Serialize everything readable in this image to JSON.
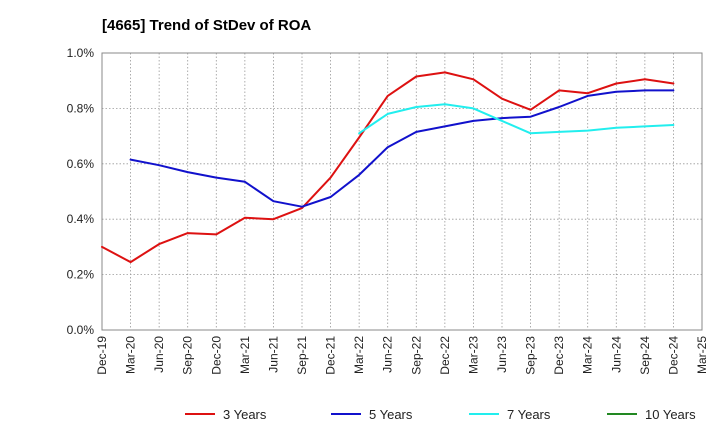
{
  "chart_data": {
    "type": "line",
    "title": "[4665]  Trend of StDev of ROA",
    "xlabel": "",
    "ylabel": "",
    "x_labels": [
      "Dec-19",
      "Mar-20",
      "Jun-20",
      "Sep-20",
      "Dec-20",
      "Mar-21",
      "Jun-21",
      "Sep-21",
      "Dec-21",
      "Mar-22",
      "Jun-22",
      "Sep-22",
      "Dec-22",
      "Mar-23",
      "Jun-23",
      "Sep-23",
      "Dec-23",
      "Mar-24",
      "Jun-24",
      "Sep-24",
      "Dec-24",
      "Mar-25"
    ],
    "y_ticks": [
      "0.0%",
      "0.2%",
      "0.4%",
      "0.6%",
      "0.8%",
      "1.0%"
    ],
    "ylim": [
      0,
      1.0
    ],
    "grid": true,
    "legend_position": "bottom",
    "series": [
      {
        "name": "3 Years",
        "color": "#dd1111",
        "values": [
          0.3,
          0.245,
          0.31,
          0.35,
          0.345,
          0.405,
          0.4,
          0.44,
          0.55,
          0.695,
          0.845,
          0.915,
          0.93,
          0.905,
          0.835,
          0.795,
          0.865,
          0.855,
          0.89,
          0.905,
          0.89,
          null
        ]
      },
      {
        "name": "5 Years",
        "color": "#1111cc",
        "values": [
          null,
          0.615,
          0.595,
          0.57,
          0.55,
          0.535,
          0.465,
          0.445,
          0.48,
          0.56,
          0.66,
          0.715,
          0.735,
          0.755,
          0.765,
          0.77,
          0.805,
          0.845,
          0.86,
          0.865,
          0.865,
          null
        ]
      },
      {
        "name": "7 Years",
        "color": "#22eeee",
        "values": [
          null,
          null,
          null,
          null,
          null,
          null,
          null,
          null,
          null,
          0.71,
          0.78,
          0.805,
          0.815,
          0.8,
          0.755,
          0.71,
          0.715,
          0.72,
          0.73,
          0.735,
          0.74,
          null
        ]
      },
      {
        "name": "10 Years",
        "color": "#228822",
        "values": [
          null,
          null,
          null,
          null,
          null,
          null,
          null,
          null,
          null,
          null,
          null,
          null,
          null,
          null,
          null,
          null,
          null,
          null,
          null,
          null,
          null,
          null
        ]
      }
    ]
  }
}
